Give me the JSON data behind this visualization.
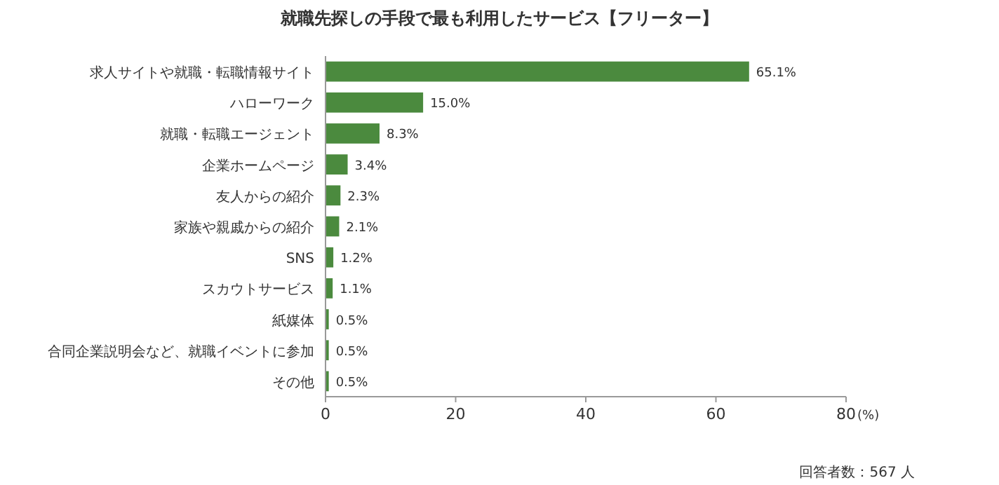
{
  "chart_data": {
    "type": "bar",
    "orientation": "horizontal",
    "title": "就職先探しの手段で最も利用したサービス【フリーター】",
    "categories": [
      "求人サイトや就職・転職情報サイト",
      "ハローワーク",
      "就職・転職エージェント",
      "企業ホームページ",
      "友人からの紹介",
      "家族や親戚からの紹介",
      "SNS",
      "スカウトサービス",
      "紙媒体",
      "合同企業説明会など、就職イベントに参加",
      "その他"
    ],
    "values": [
      65.1,
      15.0,
      8.3,
      3.4,
      2.3,
      2.1,
      1.2,
      1.1,
      0.5,
      0.5,
      0.5
    ],
    "value_labels": [
      "65.1%",
      "15.0%",
      "8.3%",
      "3.4%",
      "2.3%",
      "2.1%",
      "1.2%",
      "1.1%",
      "0.5%",
      "0.5%",
      "0.5%"
    ],
    "color": "#4b8a3e",
    "xlim": [
      0,
      80
    ],
    "xticks": [
      0,
      20,
      40,
      60,
      80
    ],
    "xlabel": "(%)",
    "grid": false,
    "annotations": [
      "回答者数：567 人"
    ]
  }
}
